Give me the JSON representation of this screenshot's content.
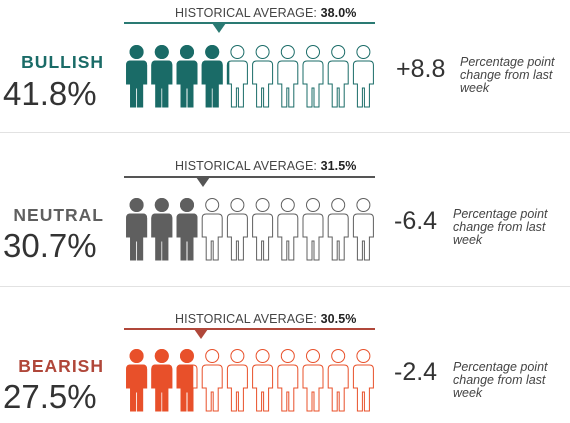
{
  "chart_data": [
    {
      "type": "icon-array",
      "label": "BULLISH",
      "value": 41.8,
      "value_text": "41.8%",
      "historical_label": "HISTORICAL AVERAGE:",
      "historical_value": 38.0,
      "historical_text": "38.0%",
      "change": 8.8,
      "change_text": "+8.8",
      "change_desc": "Percentage point change from last week",
      "color": "#1a6b67",
      "icons_total": 10
    },
    {
      "type": "icon-array",
      "label": "NEUTRAL",
      "value": 30.7,
      "value_text": "30.7%",
      "historical_label": "HISTORICAL AVERAGE:",
      "historical_value": 31.5,
      "historical_text": "31.5%",
      "change": -6.4,
      "change_text": "-6.4",
      "change_desc": "Percentage point change from last week",
      "color": "#5f5f5f",
      "icons_total": 10
    },
    {
      "type": "icon-array",
      "label": "BEARISH",
      "value": 27.5,
      "value_text": "27.5%",
      "historical_label": "HISTORICAL AVERAGE:",
      "historical_value": 30.5,
      "historical_text": "30.5%",
      "change": -2.4,
      "change_text": "-2.4",
      "change_desc": "Percentage point change from last week",
      "color": "#e8502a",
      "icons_total": 10
    }
  ],
  "colors": {
    "bullish_label": "#1a6b67",
    "neutral_label": "#5f5f5f",
    "bearish_label": "#b0473a",
    "bullish_line": "#2a7a73",
    "neutral_line": "#555555",
    "bearish_line": "#b0473a"
  }
}
